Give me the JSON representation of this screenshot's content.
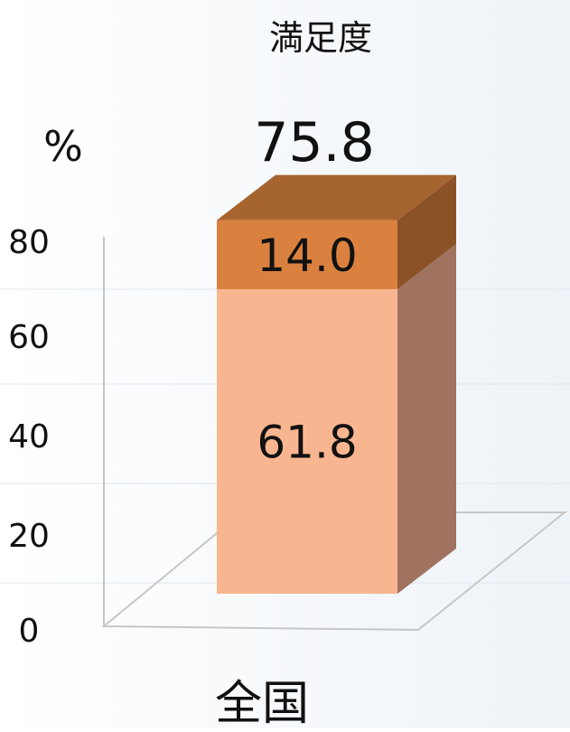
{
  "chart_data": {
    "type": "bar",
    "title": "満足度",
    "ylabel": "%",
    "categories": [
      "全国"
    ],
    "yticks": [
      "0",
      "20",
      "40",
      "60",
      "80"
    ],
    "ylim": [
      0,
      80
    ],
    "stacked": true,
    "total_label": "75.8",
    "series": [
      {
        "values": [
          61.8
        ],
        "color": "#F8B690",
        "value_label": "61.8"
      },
      {
        "values": [
          14.0
        ],
        "color": "#DB8140",
        "value_label": "14.0"
      }
    ],
    "grid": true,
    "style": "3d"
  }
}
